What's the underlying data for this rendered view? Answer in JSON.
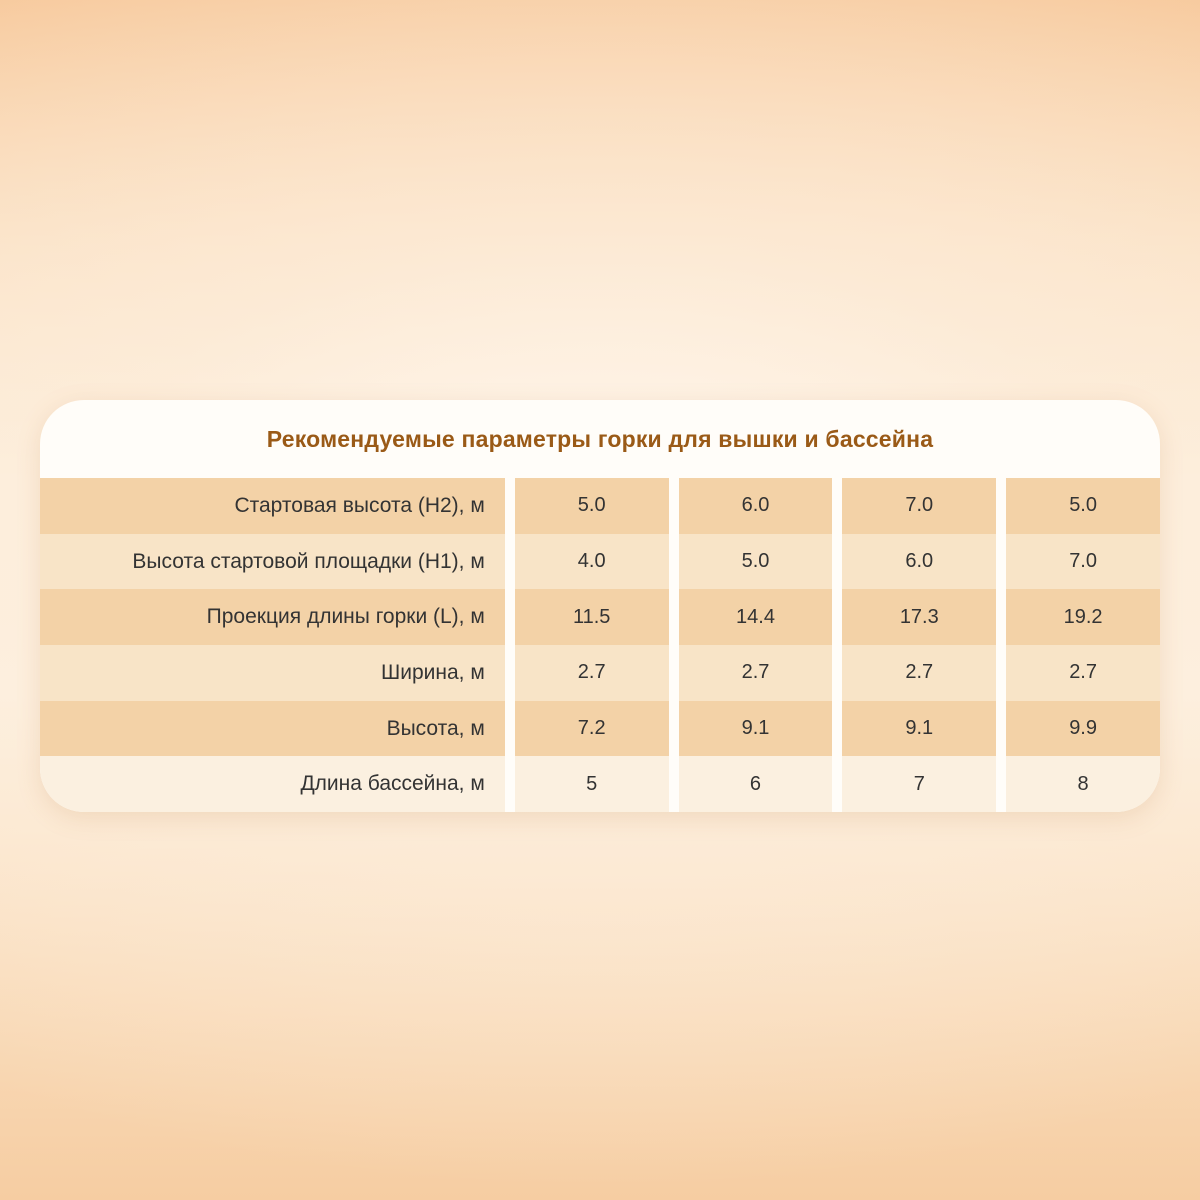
{
  "chart_data": {
    "type": "table",
    "title": "Рекомендуемые параметры горки для вышки и бассейна",
    "rows": [
      {
        "label": "Стартовая высота (H2), м",
        "values": [
          "5.0",
          "6.0",
          "7.0",
          "5.0"
        ]
      },
      {
        "label": "Высота стартовой площадки (H1), м",
        "values": [
          "4.0",
          "5.0",
          "6.0",
          "7.0"
        ]
      },
      {
        "label": "Проекция длины горки (L), м",
        "values": [
          "11.5",
          "14.4",
          "17.3",
          "19.2"
        ]
      },
      {
        "label": "Ширина, м",
        "values": [
          "2.7",
          "2.7",
          "2.7",
          "2.7"
        ]
      },
      {
        "label": "Высота, м",
        "values": [
          "7.2",
          "9.1",
          "9.1",
          "9.9"
        ]
      },
      {
        "label": "Длина бассейна, м",
        "values": [
          "5",
          "6",
          "7",
          "8"
        ]
      }
    ],
    "layout": {
      "columns": 4,
      "legend": "none",
      "grid": "banded-rows"
    }
  },
  "colors": {
    "title_text": "#9a5a17",
    "body_text": "#333333",
    "row_band_dark": "#f3d2a7",
    "row_band_light": "#f8e4c7",
    "row_band_pale": "#fbf0e0",
    "card_background": "#fffdf9",
    "page_background_accent": "#f7c99c"
  }
}
